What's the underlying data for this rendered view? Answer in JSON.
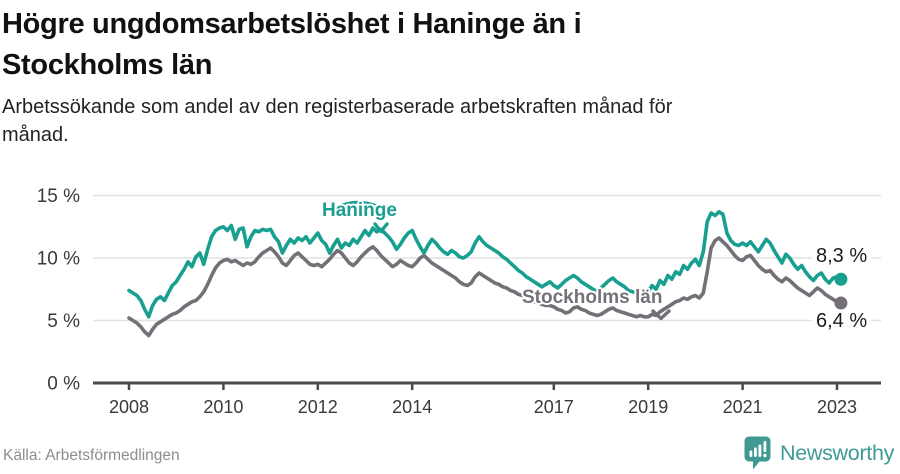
{
  "header": {
    "title_lines": [
      "Högre ungdomsarbetslöshet i Haninge än i",
      "Stockholms län"
    ],
    "subtitle_lines": [
      "Arbetssökande som andel av den registerbaserade arbetskraften månad för",
      "månad."
    ]
  },
  "footer": {
    "source": "Källa: Arbetsförmedlingen",
    "logo_text": "Newsworthy"
  },
  "colors": {
    "haninge": "#17a08f",
    "stockholm": "#757078",
    "gridline": "#e2e2e2",
    "axis": "#4a4a4a",
    "tick_label": "#3a3a3a",
    "end_label": "#1c1c1c",
    "logo": "#3f9a93"
  },
  "chart_data": {
    "type": "line",
    "title": "Högre ungdomsarbetslöshet i Haninge än i Stockholms län",
    "x_unit": "month",
    "x_start": "2008-01",
    "x_end": "2023-02",
    "x_ticks": [
      2008,
      2010,
      2012,
      2014,
      2017,
      2019,
      2021,
      2023
    ],
    "y_ticks": [
      {
        "value": 0,
        "label": "0 %"
      },
      {
        "value": 5,
        "label": "5 %"
      },
      {
        "value": 10,
        "label": "10 %"
      },
      {
        "value": 15,
        "label": "15 %"
      }
    ],
    "ylim": [
      0,
      15.8
    ],
    "grid": "horizontal",
    "series": [
      {
        "name": "Haninge",
        "end_label": "8,3 %",
        "color": "#17a08f",
        "values": [
          7.4,
          7.2,
          7.0,
          6.6,
          5.9,
          5.3,
          6.2,
          6.7,
          6.9,
          6.6,
          7.2,
          7.8,
          8.1,
          8.6,
          9.1,
          9.7,
          9.3,
          10.1,
          10.4,
          9.5,
          10.7,
          11.7,
          12.2,
          12.4,
          12.5,
          12.2,
          12.6,
          11.5,
          12.3,
          12.4,
          10.9,
          11.7,
          12.2,
          12.1,
          12.3,
          12.2,
          12.3,
          11.7,
          11.3,
          10.4,
          11.0,
          11.5,
          11.2,
          11.6,
          11.4,
          11.7,
          11.2,
          11.6,
          12.0,
          11.4,
          11.1,
          10.4,
          11.0,
          11.5,
          10.8,
          11.2,
          11.0,
          11.5,
          11.2,
          11.7,
          12.2,
          11.8,
          12.4,
          12.1,
          12.3,
          12.0,
          11.7,
          11.3,
          10.7,
          11.1,
          11.6,
          12.0,
          12.2,
          11.5,
          10.9,
          10.4,
          11.0,
          11.5,
          11.2,
          10.8,
          10.5,
          10.3,
          10.6,
          10.4,
          10.1,
          10.0,
          10.2,
          10.5,
          11.2,
          11.7,
          11.3,
          11.0,
          10.8,
          10.6,
          10.4,
          10.1,
          9.9,
          9.6,
          9.3,
          9.0,
          8.8,
          8.5,
          8.3,
          8.1,
          7.9,
          7.7,
          7.9,
          8.1,
          7.8,
          7.6,
          7.9,
          8.2,
          8.4,
          8.6,
          8.4,
          8.1,
          7.9,
          7.7,
          7.5,
          7.3,
          7.6,
          7.9,
          8.2,
          8.4,
          8.1,
          7.9,
          7.7,
          7.4,
          7.3,
          7.2,
          7.4,
          7.3,
          7.3,
          7.8,
          7.5,
          8.2,
          7.9,
          8.6,
          8.3,
          8.9,
          8.7,
          9.4,
          9.1,
          9.6,
          9.9,
          9.4,
          10.5,
          12.9,
          13.6,
          13.4,
          13.7,
          13.5,
          12.0,
          11.4,
          11.1,
          11.0,
          11.2,
          11.0,
          11.3,
          10.9,
          10.5,
          11.0,
          11.5,
          11.2,
          10.6,
          10.1,
          9.6,
          10.3,
          10.0,
          9.5,
          9.1,
          9.4,
          8.9,
          8.5,
          8.2,
          8.6,
          8.8,
          8.3,
          8.0,
          8.4,
          8.5,
          8.3
        ]
      },
      {
        "name": "Stockholms län",
        "end_label": "6,4 %",
        "color": "#757078",
        "values": [
          5.2,
          5.0,
          4.8,
          4.5,
          4.1,
          3.8,
          4.3,
          4.7,
          4.9,
          5.1,
          5.3,
          5.5,
          5.6,
          5.8,
          6.1,
          6.3,
          6.5,
          6.6,
          6.9,
          7.3,
          7.9,
          8.6,
          9.2,
          9.6,
          9.8,
          9.9,
          9.7,
          9.8,
          9.6,
          9.4,
          9.6,
          9.5,
          9.7,
          10.1,
          10.4,
          10.6,
          10.8,
          10.5,
          10.1,
          9.6,
          9.4,
          9.8,
          10.2,
          10.4,
          10.1,
          9.8,
          9.5,
          9.4,
          9.5,
          9.3,
          9.6,
          9.9,
          10.3,
          10.6,
          10.4,
          10.0,
          9.6,
          9.4,
          9.7,
          10.1,
          10.4,
          10.7,
          10.9,
          10.6,
          10.2,
          9.9,
          9.6,
          9.3,
          9.5,
          9.8,
          9.6,
          9.4,
          9.3,
          9.6,
          10.0,
          10.2,
          9.9,
          9.6,
          9.4,
          9.2,
          9.0,
          8.8,
          8.6,
          8.4,
          8.1,
          7.9,
          7.8,
          8.0,
          8.5,
          8.8,
          8.6,
          8.4,
          8.2,
          8.0,
          7.9,
          7.7,
          7.6,
          7.4,
          7.3,
          7.1,
          7.0,
          6.8,
          6.7,
          6.5,
          6.4,
          6.3,
          6.2,
          6.2,
          6.1,
          5.9,
          5.8,
          5.6,
          5.7,
          6.0,
          6.1,
          5.9,
          5.8,
          5.6,
          5.5,
          5.4,
          5.5,
          5.7,
          5.9,
          6.0,
          5.8,
          5.7,
          5.6,
          5.5,
          5.4,
          5.3,
          5.4,
          5.3,
          5.3,
          5.5,
          5.4,
          5.7,
          5.9,
          6.1,
          6.3,
          6.5,
          6.6,
          6.8,
          6.7,
          6.9,
          7.0,
          6.8,
          7.2,
          8.9,
          10.8,
          11.4,
          11.6,
          11.3,
          11.0,
          10.6,
          10.2,
          9.9,
          9.8,
          10.1,
          10.2,
          9.8,
          9.4,
          9.1,
          8.9,
          9.0,
          8.6,
          8.3,
          8.1,
          8.4,
          8.2,
          7.9,
          7.6,
          7.4,
          7.2,
          7.0,
          7.3,
          7.6,
          7.4,
          7.1,
          6.9,
          6.7,
          6.5,
          6.4
        ]
      }
    ]
  }
}
